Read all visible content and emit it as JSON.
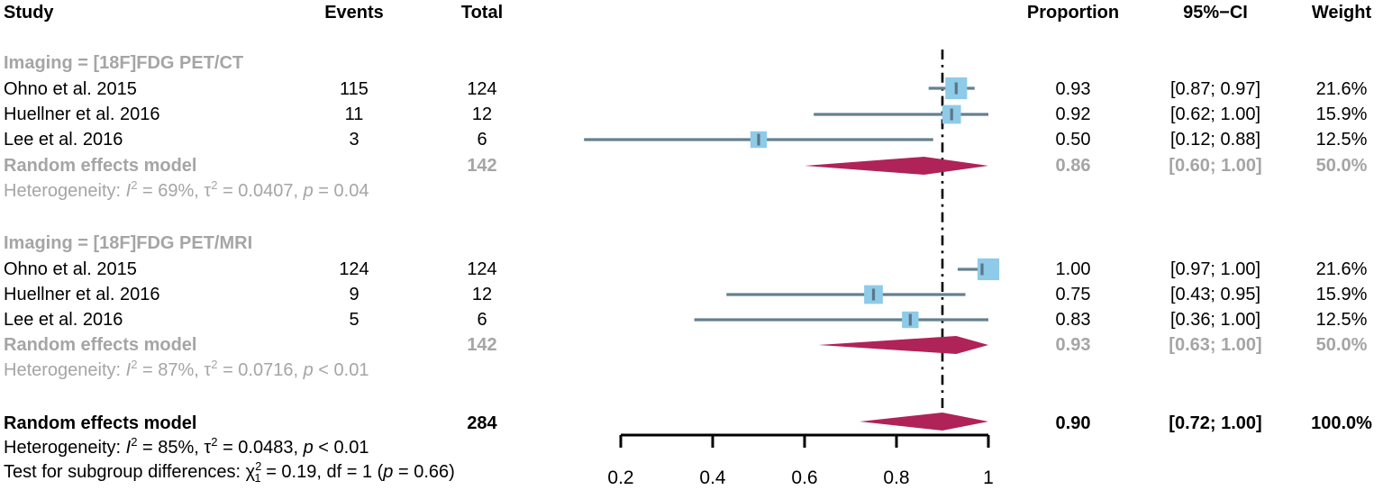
{
  "header": {
    "study": "Study",
    "events": "Events",
    "total": "Total",
    "proportion": "Proportion",
    "ci": "95%−CI",
    "weight": "Weight"
  },
  "groups": [
    {
      "label": "Imaging = [18F]FDG PET/CT",
      "studies": [
        {
          "study": "Ohno et al. 2015",
          "events": "115",
          "total": "124",
          "proportion": "0.93",
          "ci": "[0.87; 0.97]",
          "weight": "21.6%"
        },
        {
          "study": "Huellner et al. 2016",
          "events": "11",
          "total": "12",
          "proportion": "0.92",
          "ci": "[0.62; 1.00]",
          "weight": "15.9%"
        },
        {
          "study": "Lee et al. 2016",
          "events": "3",
          "total": "6",
          "proportion": "0.50",
          "ci": "[0.12; 0.88]",
          "weight": "12.5%"
        }
      ],
      "pooled": {
        "label": "Random effects model",
        "total": "142",
        "proportion": "0.86",
        "ci": "[0.60; 1.00]",
        "weight": "50.0%"
      },
      "het_segments": [
        {
          "t": "Heterogeneity: "
        },
        {
          "t": "I",
          "s": "i"
        },
        {
          "t": "2",
          "s": "sup"
        },
        {
          "t": " = 69%, τ"
        },
        {
          "t": "2",
          "s": "sup"
        },
        {
          "t": " = 0.0407, "
        },
        {
          "t": "p",
          "s": "i"
        },
        {
          "t": " = 0.04"
        }
      ]
    },
    {
      "label": "Imaging = [18F]FDG PET/MRI",
      "studies": [
        {
          "study": "Ohno et al. 2015",
          "events": "124",
          "total": "124",
          "proportion": "1.00",
          "ci": "[0.97; 1.00]",
          "weight": "21.6%"
        },
        {
          "study": "Huellner et al. 2016",
          "events": "9",
          "total": "12",
          "proportion": "0.75",
          "ci": "[0.43; 0.95]",
          "weight": "15.9%"
        },
        {
          "study": "Lee et al. 2016",
          "events": "5",
          "total": "6",
          "proportion": "0.83",
          "ci": "[0.36; 1.00]",
          "weight": "12.5%"
        }
      ],
      "pooled": {
        "label": "Random effects model",
        "total": "142",
        "proportion": "0.93",
        "ci": "[0.63; 1.00]",
        "weight": "50.0%"
      },
      "het_segments": [
        {
          "t": "Heterogeneity: "
        },
        {
          "t": "I",
          "s": "i"
        },
        {
          "t": "2",
          "s": "sup"
        },
        {
          "t": " = 87%, τ"
        },
        {
          "t": "2",
          "s": "sup"
        },
        {
          "t": " = 0.0716, "
        },
        {
          "t": "p",
          "s": "i"
        },
        {
          "t": " < 0.01"
        }
      ]
    }
  ],
  "overall": {
    "label": "Random effects model",
    "total": "284",
    "proportion": "0.90",
    "ci": "[0.72; 1.00]",
    "weight": "100.0%",
    "het_segments": [
      {
        "t": "Heterogeneity: "
      },
      {
        "t": "I",
        "s": "i"
      },
      {
        "t": "2",
        "s": "sup"
      },
      {
        "t": " = 85%, τ"
      },
      {
        "t": "2",
        "s": "sup"
      },
      {
        "t": " = 0.0483, "
      },
      {
        "t": "p",
        "s": "i"
      },
      {
        "t": " < 0.01"
      }
    ],
    "test_segments": [
      {
        "t": "Test for subgroup differences: χ"
      },
      {
        "t": "2",
        "s": "sup"
      },
      {
        "t": "1",
        "s": "substack"
      },
      {
        "t": " = 0.19, df = 1 ("
      },
      {
        "t": "p",
        "s": "i"
      },
      {
        "t": " = 0.66)"
      }
    ]
  },
  "colors": {
    "square_blue": "#8DCBE8",
    "ci_line": "#64808F",
    "estimate_tick": "#5E7586",
    "diamond_crimson": "#B02358",
    "gray_text": "#A5A5A5",
    "axis_black": "#000000"
  },
  "chart_data": {
    "type": "forest",
    "title": "",
    "xlabel": "",
    "x_ticks": [
      0.2,
      0.4,
      0.6,
      0.8,
      1
    ],
    "x_tick_labels": [
      "0.2",
      "0.4",
      "0.6",
      "0.8",
      "1"
    ],
    "x_range_drawn": [
      0.2,
      1.0
    ],
    "reference_line": 0.9,
    "grid": false,
    "groups": [
      {
        "name": "Imaging = [18F]FDG PET/CT",
        "studies": [
          {
            "name": "Ohno et al. 2015",
            "events": 115,
            "total": 124,
            "proportion": 0.93,
            "ci": [
              0.87,
              0.97
            ],
            "weight_pct": 21.6
          },
          {
            "name": "Huellner et al. 2016",
            "events": 11,
            "total": 12,
            "proportion": 0.92,
            "ci": [
              0.62,
              1.0
            ],
            "weight_pct": 15.9
          },
          {
            "name": "Lee et al. 2016",
            "events": 3,
            "total": 6,
            "proportion": 0.5,
            "ci": [
              0.12,
              0.88
            ],
            "weight_pct": 12.5
          }
        ],
        "pooled": {
          "model": "Random effects model",
          "total": 142,
          "proportion": 0.86,
          "ci": [
            0.6,
            1.0
          ],
          "weight_pct": 50.0,
          "heterogeneity": {
            "I2": "69%",
            "tau2": 0.0407,
            "p": "= 0.04"
          }
        }
      },
      {
        "name": "Imaging = [18F]FDG PET/MRI",
        "studies": [
          {
            "name": "Ohno et al. 2015",
            "events": 124,
            "total": 124,
            "proportion": 1.0,
            "ci": [
              0.97,
              1.0
            ],
            "weight_pct": 21.6
          },
          {
            "name": "Huellner et al. 2016",
            "events": 9,
            "total": 12,
            "proportion": 0.75,
            "ci": [
              0.43,
              0.95
            ],
            "weight_pct": 15.9
          },
          {
            "name": "Lee et al. 2016",
            "events": 5,
            "total": 6,
            "proportion": 0.83,
            "ci": [
              0.36,
              1.0
            ],
            "weight_pct": 12.5
          }
        ],
        "pooled": {
          "model": "Random effects model",
          "total": 142,
          "proportion": 0.93,
          "ci": [
            0.63,
            1.0
          ],
          "weight_pct": 50.0,
          "heterogeneity": {
            "I2": "87%",
            "tau2": 0.0716,
            "p": "< 0.01"
          }
        }
      }
    ],
    "overall": {
      "model": "Random effects model",
      "total": 284,
      "proportion": 0.9,
      "ci": [
        0.72,
        1.0
      ],
      "weight_pct": 100.0,
      "heterogeneity": {
        "I2": "85%",
        "tau2": 0.0483,
        "p": "< 0.01"
      },
      "subgroup_test": {
        "chi2": 0.19,
        "chi2_df_sub": 1,
        "df": 1,
        "p": 0.66
      }
    }
  }
}
